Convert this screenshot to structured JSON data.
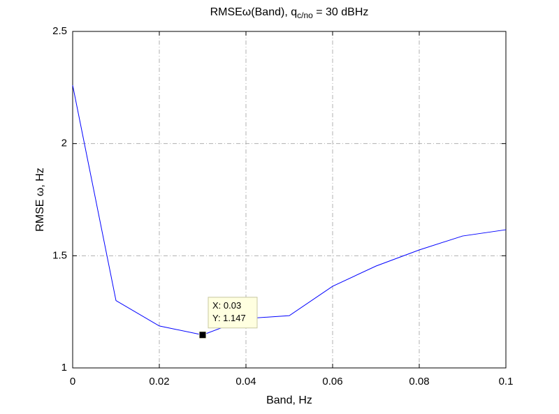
{
  "chart_data": {
    "type": "line",
    "title": {
      "main": "RMSEω(Band), q",
      "sub": "c/no",
      "tail": " = 30 dBHz"
    },
    "xlabel": "Band, Hz",
    "ylabel": "RMSE ω, Hz",
    "x": [
      0,
      0.01,
      0.02,
      0.03,
      0.04,
      0.05,
      0.06,
      0.07,
      0.08,
      0.09,
      0.1
    ],
    "series": [
      {
        "color": "#0000ff",
        "values": [
          2.26,
          1.3,
          1.187,
          1.147,
          1.22,
          1.233,
          1.364,
          1.454,
          1.526,
          1.588,
          1.616
        ]
      }
    ],
    "xlim": [
      0,
      0.1
    ],
    "xticks": [
      0,
      0.02,
      0.04,
      0.06,
      0.08,
      0.1
    ],
    "ylim": [
      1,
      2.5
    ],
    "yticks": [
      1,
      1.5,
      2,
      2.5
    ],
    "grid": true,
    "annotation": {
      "x": 0.03,
      "y": 1.147,
      "labels": [
        "X: 0.03",
        "Y: 1.147"
      ]
    }
  }
}
